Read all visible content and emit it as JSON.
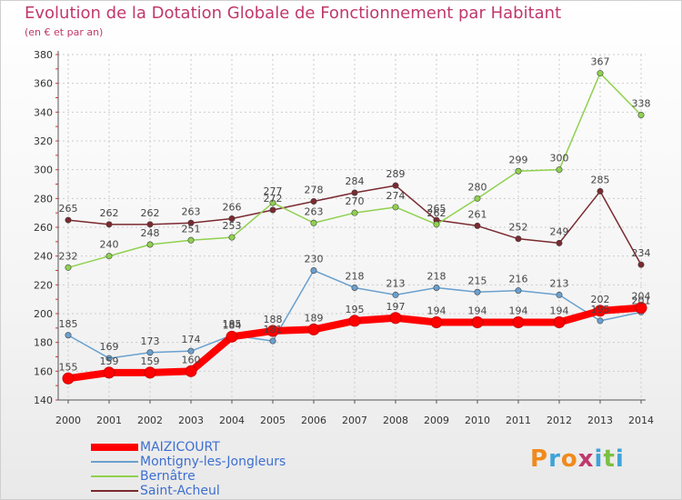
{
  "header": {
    "title": "Evolution de la Dotation Globale de Fonctionnement par Habitant",
    "subtitle": "(en € et par an)"
  },
  "logo": {
    "text": "Proxiti",
    "colors": [
      "#f08a1c",
      "#3fa3d8",
      "#f08a1c",
      "#c0386b",
      "#3fa3d8",
      "#7bc043",
      "#3fa3d8"
    ]
  },
  "chart_data": {
    "type": "line",
    "x": [
      2000,
      2001,
      2002,
      2003,
      2004,
      2005,
      2006,
      2007,
      2008,
      2009,
      2010,
      2011,
      2012,
      2013,
      2014
    ],
    "ylim": [
      140,
      380
    ],
    "yticks": [
      140,
      160,
      180,
      200,
      220,
      240,
      260,
      280,
      300,
      320,
      340,
      360,
      380
    ],
    "grid": true,
    "legend_position": "bottom-left",
    "series": [
      {
        "name": "MAIZICOURT",
        "color": "#ff0000",
        "width": 8,
        "values": [
          155,
          159,
          159,
          160,
          184,
          188,
          189,
          195,
          197,
          194,
          194,
          194,
          194,
          202,
          204
        ]
      },
      {
        "name": "Montigny-les-Jongleurs",
        "color": "#6aa0cf",
        "width": 1.5,
        "values": [
          185,
          169,
          173,
          174,
          185,
          181,
          230,
          218,
          213,
          218,
          215,
          216,
          213,
          195,
          201
        ]
      },
      {
        "name": "Bernâtre",
        "color": "#8fd14f",
        "width": 1.5,
        "values": [
          232,
          240,
          248,
          251,
          253,
          277,
          263,
          270,
          274,
          262,
          280,
          299,
          300,
          367,
          338
        ]
      },
      {
        "name": "Saint-Acheul",
        "color": "#7a2a30",
        "width": 1.5,
        "values": [
          265,
          262,
          262,
          263,
          266,
          272,
          278,
          284,
          289,
          265,
          261,
          252,
          249,
          285,
          234
        ]
      }
    ]
  }
}
